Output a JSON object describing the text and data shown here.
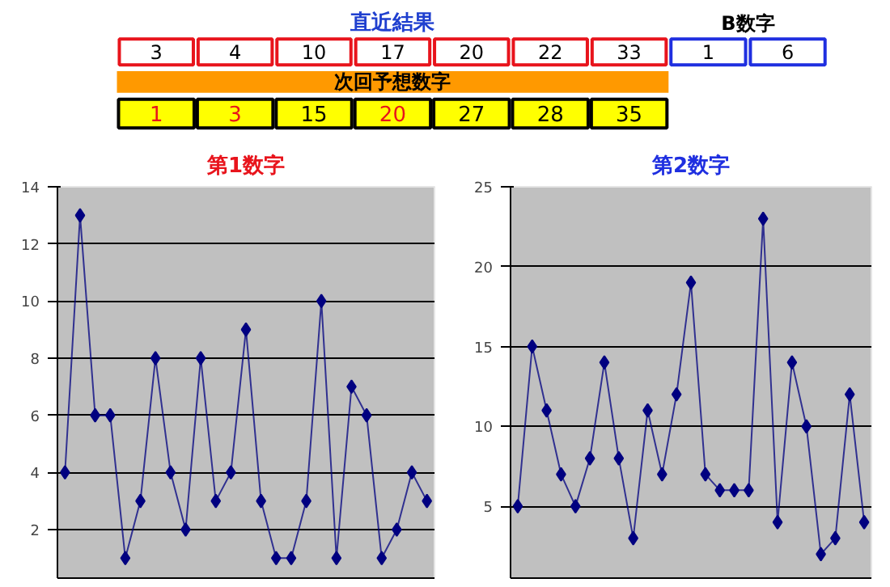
{
  "chart_data": [
    {
      "type": "other",
      "annotations": [
        "直近結果",
        "3",
        "4",
        "10",
        "17",
        "20",
        "22",
        "33",
        "B数字",
        "1",
        "6",
        "次回予想数字",
        "1",
        "3",
        "15",
        "20",
        "27",
        "28",
        "35"
      ]
    },
    {
      "type": "line",
      "title": "第1数字",
      "categories": [
        null,
        null,
        null,
        null,
        null,
        null,
        null,
        null,
        null,
        null,
        null,
        null,
        null,
        null,
        null,
        null,
        null,
        null,
        null,
        null,
        null,
        null,
        null,
        null,
        null
      ],
      "values": [
        4,
        13,
        6,
        6,
        1,
        3,
        8,
        4,
        2,
        8,
        3,
        4,
        9,
        3,
        1,
        1,
        3,
        10,
        1,
        7,
        6,
        1,
        2,
        4,
        3
      ],
      "color": "#000080",
      "ylim": [
        0.3,
        14
      ],
      "yticks": [
        2,
        4,
        6,
        8,
        10,
        12,
        14
      ],
      "grid": "y",
      "marker": "diamond",
      "tick_labels": "y"
    },
    {
      "type": "line",
      "title": "第2数字",
      "categories": [
        null,
        null,
        null,
        null,
        null,
        null,
        null,
        null,
        null,
        null,
        null,
        null,
        null,
        null,
        null,
        null,
        null,
        null,
        null,
        null,
        null,
        null,
        null,
        null,
        null
      ],
      "values": [
        5,
        15,
        11,
        7,
        5,
        8,
        14,
        8,
        3,
        11,
        7,
        12,
        19,
        7,
        6,
        6,
        6,
        23,
        4,
        14,
        10,
        2,
        3,
        12,
        4
      ],
      "color": "#000080",
      "ylim": [
        0.5,
        25
      ],
      "yticks": [
        5,
        10,
        15,
        20,
        25
      ],
      "grid": "y",
      "marker": "diamond",
      "tick_labels": "y"
    }
  ]
}
